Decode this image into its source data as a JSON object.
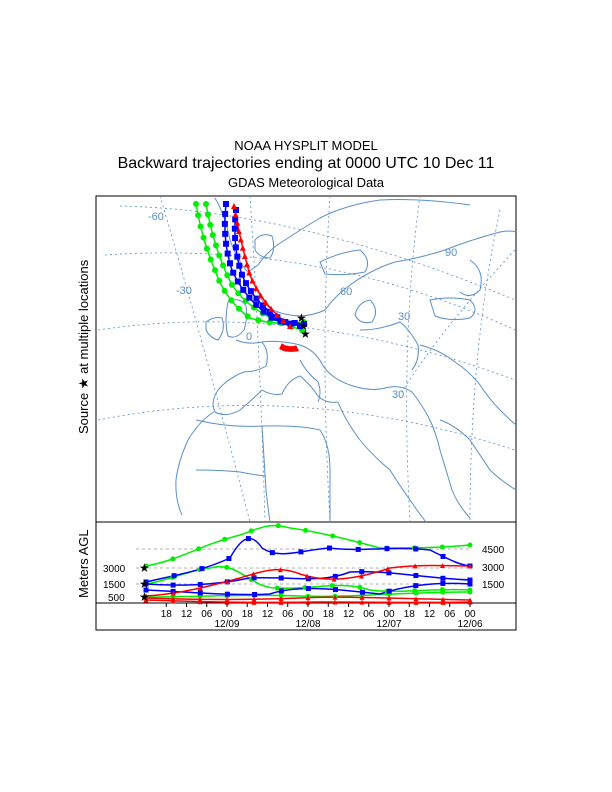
{
  "header": {
    "title": "NOAA HYSPLIT MODEL",
    "subtitle": "Backward trajectories ending at 0000 UTC 10 Dec 11",
    "data_source": "GDAS Meteorological Data"
  },
  "map": {
    "side_label": "Source ★ at multiple locations",
    "grid_labels": [
      "-60",
      "-30",
      "0",
      "30",
      "60",
      "90",
      "30"
    ],
    "colors": {
      "traj_a": "#ff0000",
      "traj_b": "#0000ff",
      "traj_c": "#00ee00",
      "map_lines": "#5b8fc8",
      "grid": "#5b8fc8"
    }
  },
  "height_panel": {
    "ylabel": "Meters AGL",
    "left_heights": [
      "3000",
      "1500",
      "500"
    ],
    "right_heights": [
      "4500",
      "3000",
      "1500"
    ],
    "time_ticks": [
      "18",
      "12",
      "06",
      "00",
      "18",
      "12",
      "06",
      "00",
      "18",
      "12",
      "06",
      "00",
      "18",
      "12",
      "06",
      "00"
    ],
    "date_labels": [
      "12/09",
      "12/08",
      "12/07",
      "12/06"
    ]
  }
}
